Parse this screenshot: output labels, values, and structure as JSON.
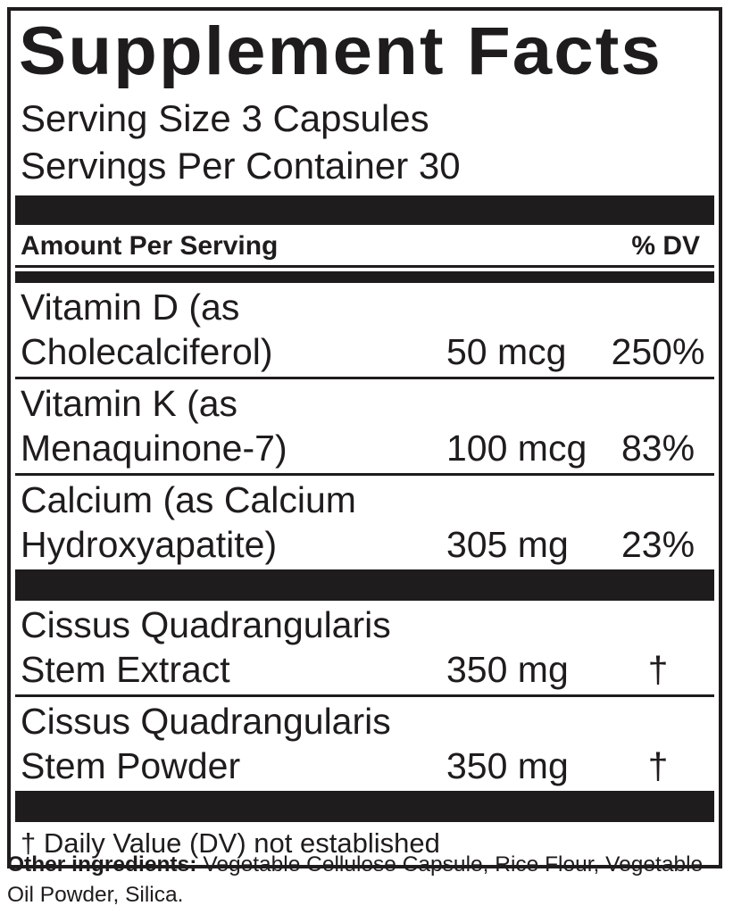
{
  "label": {
    "title": "Supplement Facts",
    "serving_size": "Serving Size 3 Capsules",
    "servings_per_container": "Servings Per Container 30",
    "column_headers": {
      "amount": "Amount Per Serving",
      "dv": "% DV"
    },
    "nutrients": [
      {
        "name": "Vitamin D (as\nCholecalciferol)",
        "amount": "50 mcg",
        "dv": "250%"
      },
      {
        "name": "Vitamin K (as\nMenaquinone-7)",
        "amount": "100 mcg",
        "dv": "83%"
      },
      {
        "name": "Calcium (as Calcium\nHydroxyapatite)",
        "amount": "305 mg",
        "dv": "23%"
      }
    ],
    "other_compounds": [
      {
        "name": "Cissus Quadrangularis\nStem Extract",
        "amount": "350 mg",
        "dv": "†"
      },
      {
        "name": "Cissus Quadrangularis\nStem Powder",
        "amount": "350 mg",
        "dv": "†"
      }
    ],
    "footnote": "† Daily Value (DV) not established"
  },
  "other_ingredients": {
    "label": "Other ingredients:",
    "text": "Vegetable Cellulose Capsule, Rice Flour, Vegetable\nOil Powder, Silica."
  },
  "colors": {
    "ink": "#1e1c1d",
    "background": "#ffffff"
  }
}
